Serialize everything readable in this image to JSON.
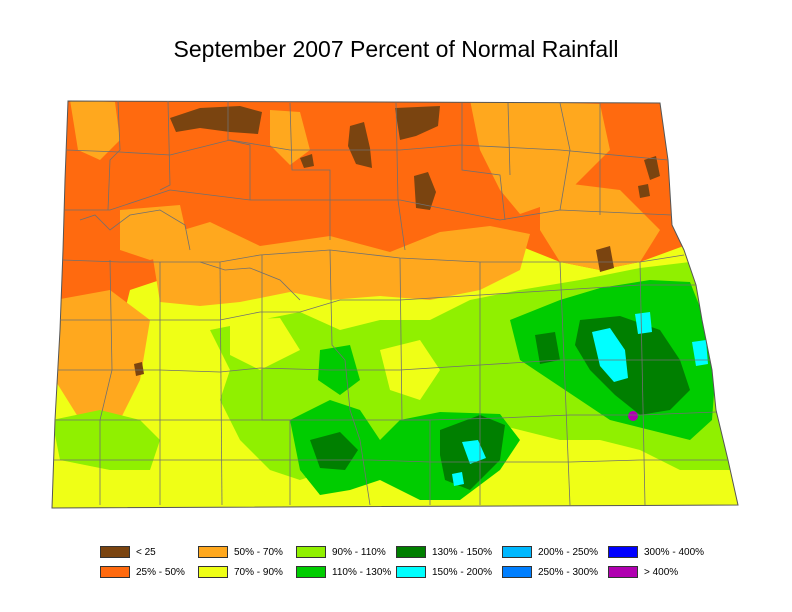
{
  "title": "September 2007 Percent of Normal Rainfall",
  "colors": {
    "lt25": "#7a4410",
    "c25_50": "#ff6a0f",
    "c50_70": "#ffa81e",
    "c70_90": "#efff16",
    "c90_110": "#90f000",
    "c110_130": "#00cc00",
    "c130_150": "#007f00",
    "c150_200": "#00ffff",
    "c200_250": "#00b8ff",
    "c250_300": "#007fff",
    "c300_400": "#0000ff",
    "gt400": "#b000b0",
    "boundary": "#707070"
  },
  "legend": [
    {
      "label": "< 25",
      "color": "#7a4410"
    },
    {
      "label": "25% - 50%",
      "color": "#ff6a0f"
    },
    {
      "label": "50% - 70%",
      "color": "#ffa81e"
    },
    {
      "label": "70% - 90%",
      "color": "#efff16"
    },
    {
      "label": "90% - 110%",
      "color": "#90f000"
    },
    {
      "label": "110% - 130%",
      "color": "#00cc00"
    },
    {
      "label": "130% - 150%",
      "color": "#007f00"
    },
    {
      "label": "150% - 200%",
      "color": "#00ffff"
    },
    {
      "label": "200% - 250%",
      "color": "#00b8ff"
    },
    {
      "label": "250% - 300%",
      "color": "#007fff"
    },
    {
      "label": "300% - 400%",
      "color": "#0000ff"
    },
    {
      "label": "> 400%",
      "color": "#b000b0"
    }
  ]
}
